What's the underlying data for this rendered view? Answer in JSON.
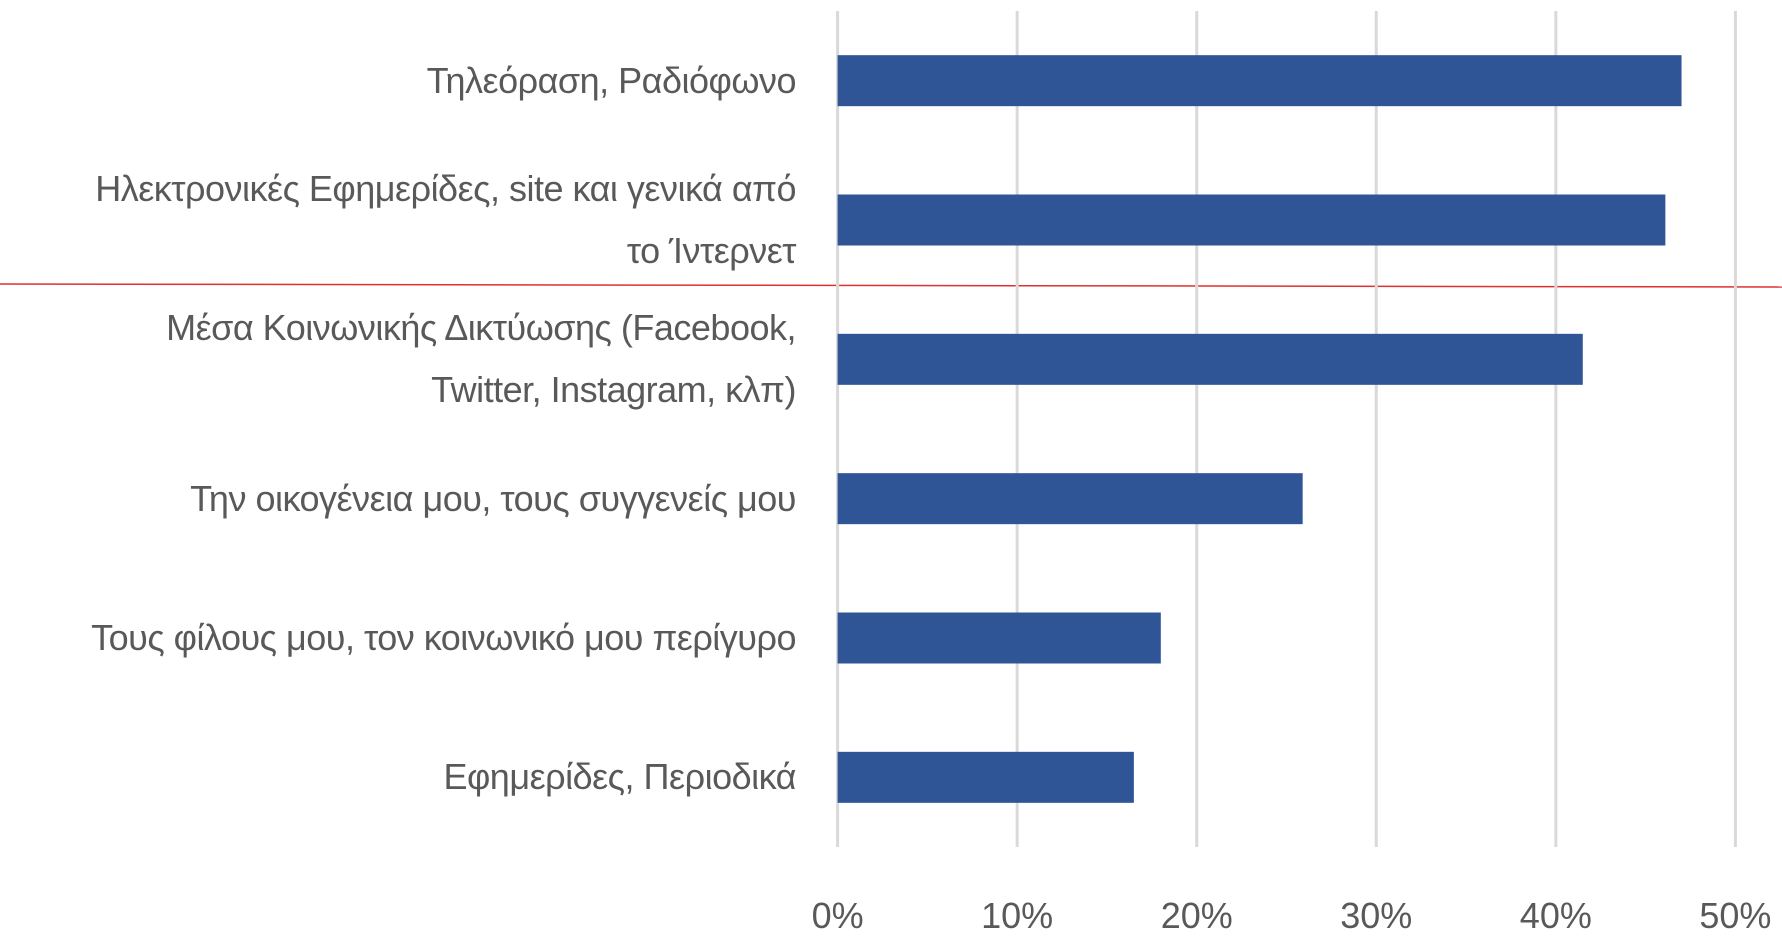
{
  "chart_data": {
    "type": "barh",
    "categories": [
      "Τηλεόραση, Ραδιόφωνο",
      "Ηλεκτρονικές Εφημερίδες, site και γενικά από το Ίντερνετ",
      "Μέσα Κοινωνικής Δικτύωσης (Facebook, Twitter, Instagram, κλπ)",
      "Την οικογένεια μου, τους συγγενείς μου",
      "Τους φίλους μου, τον κοινωνικό μου περίγυρο",
      "Εφημερίδες, Περιοδικά"
    ],
    "values": [
      47.0,
      46.1,
      41.5,
      25.9,
      18.0,
      16.5
    ],
    "color": "#2f5597",
    "xlim": [
      0,
      50
    ],
    "xticks": [
      {
        "value": 0,
        "label": "0%"
      },
      {
        "value": 10,
        "label": "10%"
      },
      {
        "value": 20,
        "label": "20%"
      },
      {
        "value": 30,
        "label": "30%"
      },
      {
        "value": 40,
        "label": "40%"
      },
      {
        "value": 50,
        "label": "50%"
      }
    ],
    "grid": true
  }
}
